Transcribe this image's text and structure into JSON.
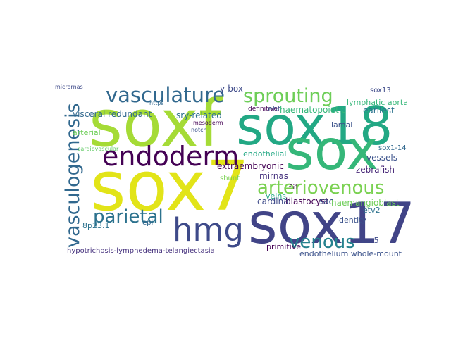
{
  "chart_data": {
    "type": "wordcloud",
    "words": [
      {
        "text": "soxf",
        "weight": 92,
        "color": "#a5db36"
      },
      {
        "text": "sox18",
        "weight": 75,
        "color": "#22a884"
      },
      {
        "text": "sox7",
        "weight": 97,
        "color": "#e2e418"
      },
      {
        "text": "sox17",
        "weight": 80,
        "color": "#414487"
      },
      {
        "text": "sox",
        "weight": 78,
        "color": "#35b779"
      },
      {
        "text": "endoderm",
        "weight": 38,
        "color": "#440154"
      },
      {
        "text": "hmg",
        "weight": 45,
        "color": "#3e4a89"
      },
      {
        "text": "vasculature",
        "weight": 29,
        "color": "#31688e"
      },
      {
        "text": "sprouting",
        "weight": 27,
        "color": "#6ece58"
      },
      {
        "text": "vasculogenesis",
        "weight": 27,
        "color": "#31688e"
      },
      {
        "text": "arteriovenous",
        "weight": 26,
        "color": "#7ad151"
      },
      {
        "text": "parietal",
        "weight": 26,
        "color": "#2c728e"
      },
      {
        "text": "venous",
        "weight": 26,
        "color": "#26828e"
      },
      {
        "text": "sry-related",
        "weight": 12,
        "color": "#2c728e"
      },
      {
        "text": "y-box",
        "weight": 12,
        "color": "#3e4a89"
      },
      {
        "text": "visceral redundant",
        "weight": 12,
        "color": "#31688e"
      },
      {
        "text": "arterial",
        "weight": 11,
        "color": "#6ece58"
      },
      {
        "text": "earliest",
        "weight": 12,
        "color": "#2c728e"
      },
      {
        "text": "lamal",
        "weight": 11,
        "color": "#3b528b"
      },
      {
        "text": "haematopoietic",
        "weight": 12,
        "color": "#35b779"
      },
      {
        "text": "sox13",
        "weight": 10,
        "color": "#3e4a89"
      },
      {
        "text": "definitive",
        "weight": 9,
        "color": "#440154"
      },
      {
        "text": "eht",
        "weight": 11,
        "color": "#3e4a89"
      },
      {
        "text": "lymphatic aorta",
        "weight": 11,
        "color": "#35b779"
      },
      {
        "text": "endothelial",
        "weight": 11,
        "color": "#22a884"
      },
      {
        "text": "extraembryonic",
        "weight": 12,
        "color": "#440154"
      },
      {
        "text": "mirnas",
        "weight": 12,
        "color": "#46327e"
      },
      {
        "text": "sox1-14",
        "weight": 10,
        "color": "#31688e"
      },
      {
        "text": "vessels",
        "weight": 12,
        "color": "#3b528b"
      },
      {
        "text": "zebrafish",
        "weight": 12,
        "color": "#482878"
      },
      {
        "text": "haemangioblast",
        "weight": 12,
        "color": "#6ece58"
      },
      {
        "text": "blastocyst",
        "weight": 12,
        "color": "#440154"
      },
      {
        "text": "sac",
        "weight": 12,
        "color": "#3b528b"
      },
      {
        "text": "cardinal",
        "weight": 12,
        "color": "#3e4a89"
      },
      {
        "text": "veins",
        "weight": 11,
        "color": "#22a884"
      },
      {
        "text": "etv2",
        "weight": 11,
        "color": "#2c728e"
      },
      {
        "text": "identity",
        "weight": 11,
        "color": "#3b528b"
      },
      {
        "text": "sox5",
        "weight": 11,
        "color": "#3e4a89"
      },
      {
        "text": "primitive",
        "weight": 11,
        "color": "#440154"
      },
      {
        "text": "endothelium whole-mount",
        "weight": 11,
        "color": "#3b528b"
      },
      {
        "text": "hypotrichosis-lymphedema-telangiectasia",
        "weight": 10,
        "color": "#46327e"
      },
      {
        "text": "8p23.1",
        "weight": 11,
        "color": "#2c728e"
      },
      {
        "text": "cardiovascular",
        "weight": 8,
        "color": "#5ec962"
      },
      {
        "text": "shunt",
        "weight": 10,
        "color": "#7ad151"
      },
      {
        "text": "fli1",
        "weight": 9,
        "color": "#440154"
      },
      {
        "text": "micrornas",
        "weight": 8,
        "color": "#3e4a89"
      },
      {
        "text": "https",
        "weight": 8,
        "color": "#31688e"
      },
      {
        "text": "mesoderm",
        "weight": 8,
        "color": "#440154"
      },
      {
        "text": "notch",
        "weight": 8,
        "color": "#3b528b"
      },
      {
        "text": "epi",
        "weight": 10,
        "color": "#31688e"
      }
    ]
  }
}
